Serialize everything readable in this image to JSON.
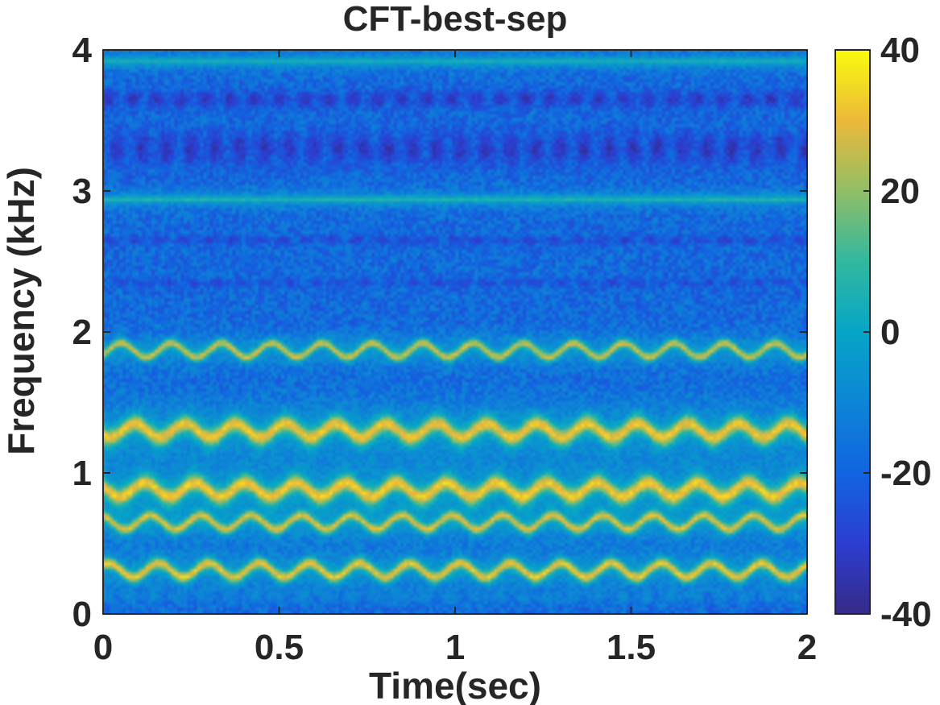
{
  "chart_data": {
    "type": "heatmap",
    "title": "CFT-best-sep",
    "xlabel": "Time(sec)",
    "ylabel": "Frequency (kHz)",
    "xlim": [
      0,
      2
    ],
    "ylim": [
      0,
      4
    ],
    "x_ticks": [
      {
        "value": 0,
        "label": "0"
      },
      {
        "value": 0.5,
        "label": "0.5"
      },
      {
        "value": 1,
        "label": "1"
      },
      {
        "value": 1.5,
        "label": "1.5"
      },
      {
        "value": 2,
        "label": "2"
      }
    ],
    "y_ticks": [
      {
        "value": 0,
        "label": "0"
      },
      {
        "value": 1,
        "label": "1"
      },
      {
        "value": 2,
        "label": "2"
      },
      {
        "value": 3,
        "label": "3"
      },
      {
        "value": 4,
        "label": "4"
      }
    ],
    "colorbar": {
      "range": [
        -40,
        40
      ],
      "colormap": "parula",
      "ticks": [
        {
          "value": 40,
          "label": "40"
        },
        {
          "value": 20,
          "label": "20"
        },
        {
          "value": 0,
          "label": "0"
        },
        {
          "value": -20,
          "label": "-20"
        },
        {
          "value": -40,
          "label": "-40"
        }
      ]
    },
    "bands": [
      {
        "freq_khz": 0.31,
        "width_khz": 0.045,
        "level_db": 32,
        "modulated": true
      },
      {
        "freq_khz": 0.65,
        "width_khz": 0.04,
        "level_db": 30,
        "modulated": true
      },
      {
        "freq_khz": 0.88,
        "width_khz": 0.07,
        "level_db": 33,
        "modulated": true
      },
      {
        "freq_khz": 1.3,
        "width_khz": 0.07,
        "level_db": 32,
        "modulated": true
      },
      {
        "freq_khz": 1.87,
        "width_khz": 0.035,
        "level_db": 28,
        "modulated": true
      },
      {
        "freq_khz": 2.94,
        "width_khz": 0.02,
        "level_db": 6,
        "modulated": false
      },
      {
        "freq_khz": 3.92,
        "width_khz": 0.02,
        "level_db": 2,
        "modulated": false
      }
    ],
    "background_db": -18,
    "low_bands": [
      {
        "freq_khz": 3.65,
        "width_khz": 0.06,
        "level_db": -34
      },
      {
        "freq_khz": 3.3,
        "width_khz": 0.12,
        "level_db": -34
      },
      {
        "freq_khz": 2.65,
        "width_khz": 0.03,
        "level_db": -30
      },
      {
        "freq_khz": 2.35,
        "width_khz": 0.03,
        "level_db": -28
      },
      {
        "freq_khz": 0.12,
        "width_khz": 0.05,
        "level_db": -10
      }
    ]
  }
}
